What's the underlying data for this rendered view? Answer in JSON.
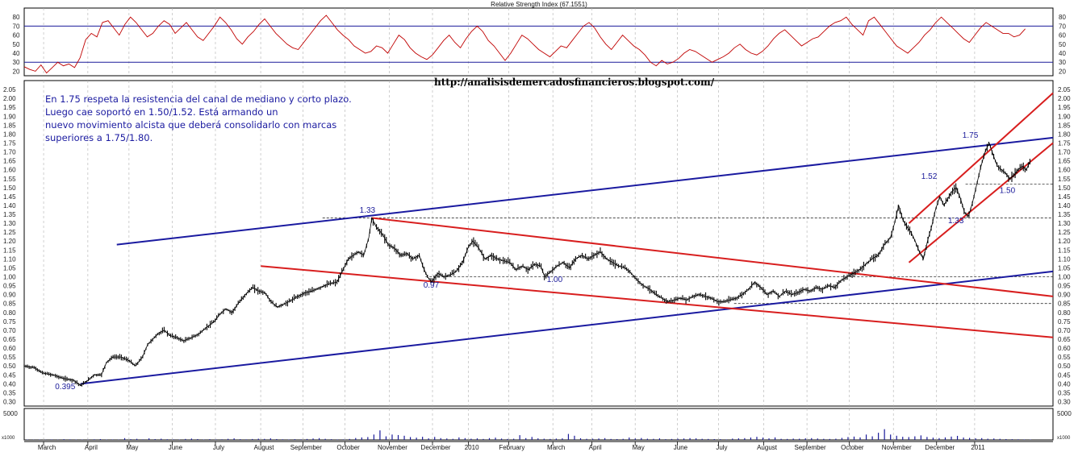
{
  "site_url": "http://analisisdemercadosfinancieros.blogspot.com/",
  "note_lines": [
    "En 1.75 respeta la resistencia del canal de mediano y corto plazo.",
    "Luego cae soportó en 1.50/1.52. Está armando un",
    "nuevo movimiento alcista que deberá consolidarlo con marcas",
    "superiores a 1.75/1.80."
  ],
  "colors": {
    "price": "#000000",
    "rsi_line": "#c00000",
    "rsi_bands": "#1a1a9a",
    "blue_channel": "#1a1aa0",
    "red_channel": "#d81e1e",
    "annotation": "#1a1a9a",
    "grid": "#b0b0b0",
    "volume": "#1a1a9a"
  },
  "chart_data": {
    "type": "line",
    "rsi_panel": {
      "title": "Relative Strength Index (67.1551)",
      "ylim": [
        15,
        90
      ],
      "ticks": [
        20,
        30,
        40,
        50,
        60,
        70,
        80
      ],
      "bands": [
        30,
        70
      ],
      "values": [
        25,
        22,
        20,
        27,
        18,
        24,
        30,
        26,
        28,
        24,
        35,
        55,
        62,
        58,
        74,
        76,
        68,
        60,
        72,
        80,
        74,
        66,
        58,
        62,
        70,
        76,
        72,
        62,
        68,
        74,
        66,
        58,
        54,
        62,
        70,
        80,
        74,
        66,
        56,
        50,
        58,
        64,
        72,
        78,
        70,
        62,
        56,
        50,
        46,
        44,
        52,
        60,
        68,
        76,
        82,
        74,
        66,
        60,
        55,
        48,
        44,
        40,
        42,
        48,
        46,
        40,
        50,
        60,
        55,
        46,
        40,
        36,
        33,
        38,
        46,
        54,
        60,
        52,
        46,
        56,
        64,
        70,
        64,
        54,
        48,
        40,
        32,
        40,
        50,
        60,
        56,
        50,
        44,
        40,
        36,
        42,
        48,
        46,
        54,
        62,
        70,
        74,
        68,
        58,
        50,
        44,
        52,
        60,
        54,
        48,
        44,
        38,
        30,
        26,
        32,
        28,
        30,
        34,
        40,
        44,
        42,
        38,
        34,
        30,
        33,
        36,
        40,
        46,
        50,
        44,
        40,
        38,
        42,
        48,
        56,
        62,
        66,
        60,
        54,
        48,
        52,
        56,
        58,
        64,
        70,
        74,
        76,
        80,
        72,
        66,
        60,
        76,
        80,
        72,
        64,
        56,
        48,
        44,
        40,
        46,
        52,
        60,
        66,
        74,
        80,
        74,
        68,
        62,
        56,
        52,
        60,
        68,
        74,
        70,
        66,
        62,
        62,
        58,
        60,
        67
      ]
    },
    "price_panel": {
      "ylim": [
        0.275,
        2.1
      ],
      "ticks": [
        0.3,
        0.35,
        0.4,
        0.45,
        0.5,
        0.55,
        0.6,
        0.65,
        0.7,
        0.75,
        0.8,
        0.85,
        0.9,
        0.95,
        1.0,
        1.05,
        1.1,
        1.15,
        1.2,
        1.25,
        1.3,
        1.35,
        1.4,
        1.45,
        1.5,
        1.55,
        1.6,
        1.65,
        1.7,
        1.75,
        1.8,
        1.85,
        1.9,
        1.95,
        2.0,
        2.05
      ],
      "x_range": [
        0,
        100
      ],
      "x_labels": [
        "March",
        "April",
        "May",
        "June",
        "July",
        "August",
        "September",
        "October",
        "November",
        "December",
        "2010",
        "February",
        "March",
        "April",
        "May",
        "June",
        "July",
        "August",
        "September",
        "October",
        "November",
        "December",
        "2011"
      ],
      "x_label_pos": [
        2.2,
        6.5,
        10.5,
        14.7,
        18.9,
        23.3,
        27.4,
        31.5,
        35.8,
        40.0,
        43.5,
        47.4,
        51.7,
        55.5,
        59.7,
        63.8,
        67.8,
        72.2,
        76.4,
        80.5,
        84.8,
        89.0,
        92.7
      ],
      "price_path": [
        [
          0.0,
          0.5
        ],
        [
          1.0,
          0.49
        ],
        [
          1.8,
          0.46
        ],
        [
          2.8,
          0.45
        ],
        [
          3.8,
          0.43
        ],
        [
          4.8,
          0.42
        ],
        [
          5.5,
          0.39
        ],
        [
          6.2,
          0.42
        ],
        [
          6.8,
          0.45
        ],
        [
          7.5,
          0.45
        ],
        [
          8.0,
          0.52
        ],
        [
          8.6,
          0.55
        ],
        [
          9.4,
          0.55
        ],
        [
          10.2,
          0.53
        ],
        [
          10.8,
          0.5
        ],
        [
          11.5,
          0.55
        ],
        [
          12.0,
          0.62
        ],
        [
          12.5,
          0.65
        ],
        [
          13.0,
          0.68
        ],
        [
          13.6,
          0.7
        ],
        [
          14.2,
          0.67
        ],
        [
          14.8,
          0.66
        ],
        [
          15.5,
          0.64
        ],
        [
          16.3,
          0.66
        ],
        [
          17.0,
          0.68
        ],
        [
          17.8,
          0.72
        ],
        [
          18.5,
          0.75
        ],
        [
          19.0,
          0.79
        ],
        [
          19.6,
          0.82
        ],
        [
          20.2,
          0.8
        ],
        [
          20.8,
          0.85
        ],
        [
          21.5,
          0.9
        ],
        [
          22.2,
          0.94
        ],
        [
          22.8,
          0.92
        ],
        [
          23.4,
          0.91
        ],
        [
          24.0,
          0.86
        ],
        [
          24.6,
          0.83
        ],
        [
          25.4,
          0.85
        ],
        [
          26.0,
          0.87
        ],
        [
          26.6,
          0.89
        ],
        [
          27.3,
          0.91
        ],
        [
          28.0,
          0.92
        ],
        [
          28.8,
          0.94
        ],
        [
          29.6,
          0.96
        ],
        [
          30.4,
          0.97
        ],
        [
          31.0,
          1.04
        ],
        [
          31.5,
          1.1
        ],
        [
          32.0,
          1.12
        ],
        [
          32.5,
          1.14
        ],
        [
          33.0,
          1.12
        ],
        [
          33.5,
          1.22
        ],
        [
          33.8,
          1.33
        ],
        [
          34.2,
          1.28
        ],
        [
          34.8,
          1.24
        ],
        [
          35.4,
          1.18
        ],
        [
          36.0,
          1.16
        ],
        [
          36.6,
          1.12
        ],
        [
          37.2,
          1.13
        ],
        [
          37.8,
          1.1
        ],
        [
          38.4,
          1.12
        ],
        [
          38.8,
          1.05
        ],
        [
          39.2,
          1.0
        ],
        [
          39.6,
          0.97
        ],
        [
          40.2,
          1.02
        ],
        [
          40.8,
          1.0
        ],
        [
          41.4,
          1.01
        ],
        [
          42.0,
          1.03
        ],
        [
          42.6,
          1.08
        ],
        [
          43.2,
          1.17
        ],
        [
          43.6,
          1.2
        ],
        [
          44.2,
          1.16
        ],
        [
          44.8,
          1.1
        ],
        [
          45.4,
          1.12
        ],
        [
          46.0,
          1.1
        ],
        [
          46.6,
          1.09
        ],
        [
          47.2,
          1.08
        ],
        [
          47.8,
          1.04
        ],
        [
          48.4,
          1.06
        ],
        [
          49.0,
          1.04
        ],
        [
          49.6,
          1.07
        ],
        [
          50.2,
          1.06
        ],
        [
          50.6,
          1.0
        ],
        [
          51.2,
          1.03
        ],
        [
          51.8,
          1.06
        ],
        [
          52.4,
          1.08
        ],
        [
          53.0,
          1.05
        ],
        [
          53.6,
          1.1
        ],
        [
          54.2,
          1.12
        ],
        [
          54.8,
          1.1
        ],
        [
          55.4,
          1.12
        ],
        [
          56.0,
          1.14
        ],
        [
          56.6,
          1.1
        ],
        [
          57.2,
          1.08
        ],
        [
          57.8,
          1.06
        ],
        [
          58.4,
          1.05
        ],
        [
          59.0,
          1.02
        ],
        [
          59.6,
          0.98
        ],
        [
          60.2,
          0.95
        ],
        [
          60.8,
          0.93
        ],
        [
          61.4,
          0.9
        ],
        [
          62.0,
          0.88
        ],
        [
          62.6,
          0.86
        ],
        [
          63.2,
          0.87
        ],
        [
          63.8,
          0.88
        ],
        [
          64.4,
          0.87
        ],
        [
          65.0,
          0.89
        ],
        [
          65.6,
          0.9
        ],
        [
          66.2,
          0.89
        ],
        [
          66.8,
          0.88
        ],
        [
          67.4,
          0.86
        ],
        [
          68.0,
          0.86
        ],
        [
          68.6,
          0.87
        ],
        [
          69.2,
          0.88
        ],
        [
          69.8,
          0.9
        ],
        [
          70.4,
          0.93
        ],
        [
          71.0,
          0.97
        ],
        [
          71.6,
          0.94
        ],
        [
          72.2,
          0.9
        ],
        [
          72.8,
          0.92
        ],
        [
          73.4,
          0.89
        ],
        [
          74.0,
          0.92
        ],
        [
          74.6,
          0.9
        ],
        [
          75.2,
          0.91
        ],
        [
          75.8,
          0.93
        ],
        [
          76.4,
          0.92
        ],
        [
          77.0,
          0.94
        ],
        [
          77.6,
          0.93
        ],
        [
          78.2,
          0.95
        ],
        [
          78.8,
          0.94
        ],
        [
          79.4,
          0.98
        ],
        [
          80.0,
          1.0
        ],
        [
          80.6,
          1.02
        ],
        [
          81.2,
          1.04
        ],
        [
          81.8,
          1.07
        ],
        [
          82.4,
          1.1
        ],
        [
          83.0,
          1.12
        ],
        [
          83.6,
          1.18
        ],
        [
          84.2,
          1.22
        ],
        [
          84.6,
          1.3
        ],
        [
          85.0,
          1.4
        ],
        [
          85.4,
          1.32
        ],
        [
          85.8,
          1.28
        ],
        [
          86.2,
          1.25
        ],
        [
          86.6,
          1.2
        ],
        [
          87.0,
          1.14
        ],
        [
          87.4,
          1.1
        ],
        [
          87.8,
          1.2
        ],
        [
          88.2,
          1.28
        ],
        [
          88.6,
          1.38
        ],
        [
          89.0,
          1.45
        ],
        [
          89.4,
          1.4
        ],
        [
          89.8,
          1.44
        ],
        [
          90.2,
          1.48
        ],
        [
          90.6,
          1.5
        ],
        [
          91.0,
          1.44
        ],
        [
          91.4,
          1.36
        ],
        [
          91.8,
          1.34
        ],
        [
          92.2,
          1.42
        ],
        [
          92.6,
          1.52
        ],
        [
          93.0,
          1.62
        ],
        [
          93.4,
          1.7
        ],
        [
          93.8,
          1.75
        ],
        [
          94.2,
          1.68
        ],
        [
          94.6,
          1.62
        ],
        [
          95.0,
          1.6
        ],
        [
          95.4,
          1.58
        ],
        [
          95.8,
          1.55
        ],
        [
          96.2,
          1.57
        ],
        [
          96.6,
          1.6
        ],
        [
          97.0,
          1.62
        ],
        [
          97.4,
          1.6
        ],
        [
          97.8,
          1.65
        ]
      ],
      "lines": [
        {
          "name": "blue-upper",
          "color": "blue",
          "p1": [
            9.0,
            1.18
          ],
          "p2": [
            100,
            1.78
          ]
        },
        {
          "name": "blue-lower",
          "color": "blue",
          "p1": [
            5.5,
            0.4
          ],
          "p2": [
            100,
            1.03
          ]
        },
        {
          "name": "red-upper",
          "color": "red",
          "p1": [
            33.8,
            1.33
          ],
          "p2": [
            100,
            0.89
          ]
        },
        {
          "name": "red-lower",
          "color": "red",
          "p1": [
            23.0,
            1.06
          ],
          "p2": [
            100,
            0.66
          ]
        },
        {
          "name": "red-channel-up",
          "color": "red",
          "p1": [
            86.0,
            1.3
          ],
          "p2": [
            100,
            2.03
          ]
        },
        {
          "name": "red-channel-low",
          "color": "red",
          "p1": [
            86.0,
            1.08
          ],
          "p2": [
            100,
            1.75
          ]
        }
      ],
      "dashed_levels": [
        {
          "y": 1.33,
          "x1": 29.0,
          "x2": 100
        },
        {
          "y": 1.0,
          "x1": 39.0,
          "x2": 100
        },
        {
          "y": 1.52,
          "x1": 91.5,
          "x2": 100
        },
        {
          "y": 0.85,
          "x1": 69.0,
          "x2": 100
        }
      ],
      "labels": [
        {
          "text": "1.33",
          "x": 32.6,
          "y": 1.36
        },
        {
          "text": "0.97",
          "x": 38.8,
          "y": 0.94
        },
        {
          "text": "1.00",
          "x": 50.8,
          "y": 0.97
        },
        {
          "text": "0.395",
          "x": 3.0,
          "y": 0.37
        },
        {
          "text": "1.75",
          "x": 91.2,
          "y": 1.78
        },
        {
          "text": "1.52",
          "x": 87.2,
          "y": 1.55
        },
        {
          "text": "1.50",
          "x": 94.8,
          "y": 1.47
        },
        {
          "text": "1.33",
          "x": 89.8,
          "y": 1.3
        }
      ]
    },
    "volume_panel": {
      "ylim": [
        0,
        5000
      ],
      "tick_top": "5000",
      "tick_bottom": "x1000",
      "values": [
        60,
        40,
        50,
        30,
        80,
        40,
        120,
        90,
        60,
        70,
        40,
        100,
        140,
        60,
        80,
        50,
        300,
        120,
        180,
        90,
        260,
        140,
        200,
        110,
        90,
        60,
        160,
        220,
        140,
        70,
        120,
        80,
        100,
        180,
        260,
        120,
        90,
        150,
        200,
        170,
        260,
        140,
        100,
        70,
        120,
        90,
        160,
        240,
        300,
        180,
        120,
        80,
        90,
        160,
        320,
        420,
        480,
        900,
        1600,
        600,
        900,
        820,
        700,
        480,
        380,
        520,
        260,
        500,
        300,
        240,
        180,
        420,
        300,
        200,
        260,
        160,
        300,
        380,
        220,
        160,
        200,
        800,
        300,
        500,
        260,
        200,
        160,
        220,
        260,
        1000,
        700,
        280,
        180,
        200,
        240,
        300,
        160,
        140,
        180,
        400,
        240,
        320,
        200,
        180,
        260,
        120,
        160,
        200,
        240,
        300,
        260,
        180,
        160,
        140,
        120,
        80,
        220,
        260,
        300,
        400,
        520,
        380,
        260,
        420,
        180,
        160,
        220,
        200,
        260,
        300,
        240,
        180,
        160,
        200,
        340,
        480,
        560,
        420,
        900,
        600,
        1200,
        1800,
        900,
        700,
        520,
        480,
        600,
        760,
        500,
        380,
        300,
        420,
        560,
        680,
        400,
        340,
        260,
        300,
        200,
        240,
        180,
        140,
        120,
        100,
        80,
        60
      ]
    }
  }
}
